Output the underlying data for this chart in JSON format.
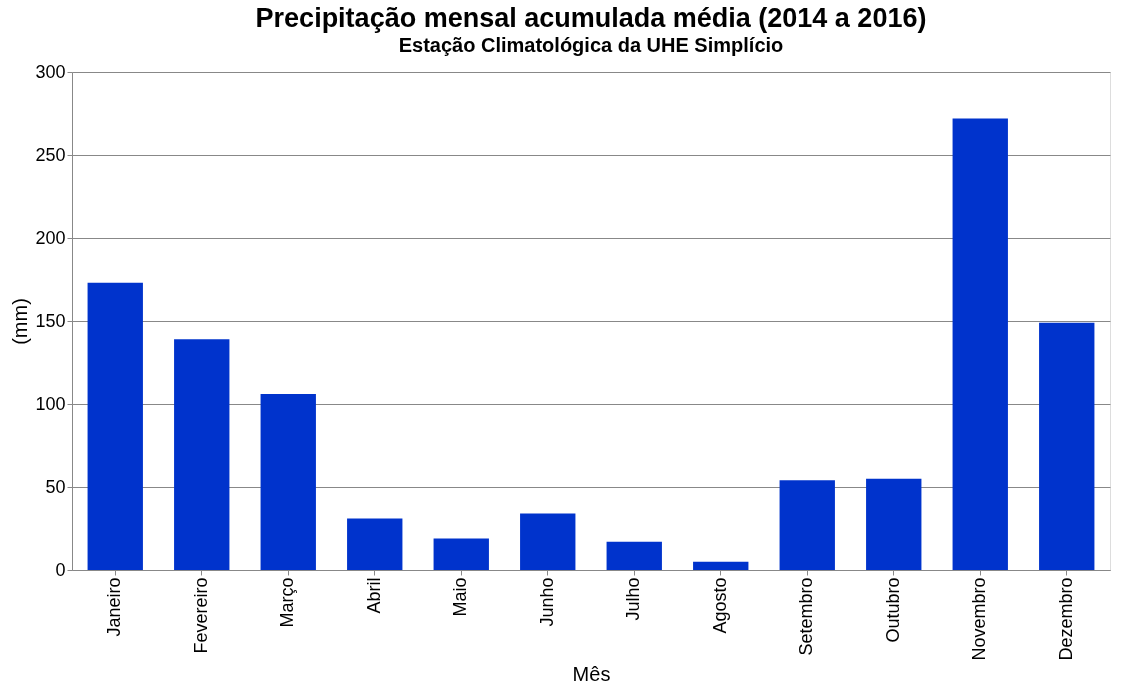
{
  "chart_data": {
    "type": "bar",
    "title": "Precipitação mensal acumulada média (2014 a 2016)",
    "subtitle": "Estação Climatológica da UHE Simplício",
    "xlabel": "Mês",
    "ylabel": "(mm)",
    "categories": [
      "Janeiro",
      "Fevereiro",
      "Março",
      "Abril",
      "Maio",
      "Junho",
      "Julho",
      "Agosto",
      "Setembro",
      "Outubro",
      "Novembro",
      "Dezembro"
    ],
    "values": [
      173,
      139,
      106,
      31,
      19,
      34,
      17,
      5,
      54,
      55,
      272,
      149
    ],
    "color": "#0033cc",
    "ylim": [
      0,
      300
    ],
    "yticks": [
      0,
      50,
      100,
      150,
      200,
      250,
      300
    ],
    "grid": "y"
  }
}
